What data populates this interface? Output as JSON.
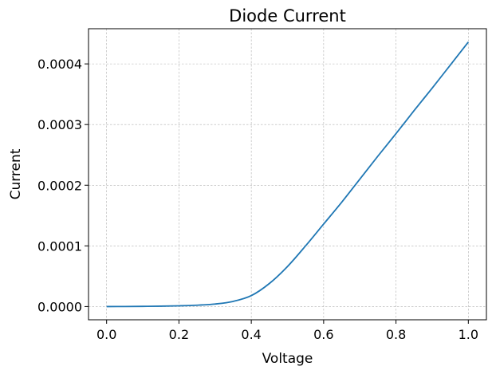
{
  "chart_data": {
    "type": "line",
    "title": "Diode Current",
    "xlabel": "Voltage",
    "ylabel": "Current",
    "xlim": [
      -0.05,
      1.05
    ],
    "ylim": [
      -2.18e-05,
      0.000458
    ],
    "x_ticks": [
      0.0,
      0.2,
      0.4,
      0.6,
      0.8,
      1.0
    ],
    "x_tick_labels": [
      "0.0",
      "0.2",
      "0.4",
      "0.6",
      "0.8",
      "1.0"
    ],
    "y_ticks": [
      0.0,
      0.0001,
      0.0002,
      0.0003,
      0.0004
    ],
    "y_tick_labels": [
      "0.0000",
      "0.0001",
      "0.0002",
      "0.0003",
      "0.0004"
    ],
    "grid": true,
    "legend": "none",
    "series": [
      {
        "color": "#1f77b4",
        "x": [
          0.0,
          0.05,
          0.1,
          0.15,
          0.2,
          0.25,
          0.3,
          0.35,
          0.4,
          0.45,
          0.5,
          0.55,
          0.6,
          0.65,
          0.7,
          0.75,
          0.8,
          0.85,
          0.9,
          0.95,
          1.0
        ],
        "y": [
          0.0,
          1e-07,
          3e-07,
          6e-07,
          1.2e-06,
          2.2e-06,
          4.2e-06,
          8.5e-06,
          1.8e-05,
          3.8e-05,
          6.6e-05,
          0.0001,
          0.000136,
          0.000172,
          0.00021,
          0.000248,
          0.000285,
          0.000323,
          0.00036,
          0.000398,
          0.000436
        ]
      }
    ]
  }
}
